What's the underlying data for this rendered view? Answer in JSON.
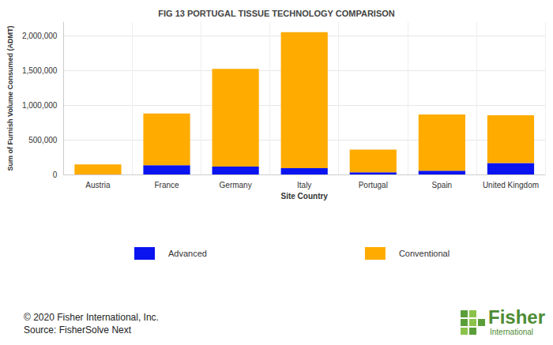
{
  "chart_data": {
    "type": "bar",
    "title": "FIG 13 PORTUGAL TISSUE TECHNOLOGY COMPARISON",
    "x_label": "Site Country",
    "y_label": "Sum of Furnish Volume Consumed (ADMT)",
    "categories": [
      "Austria",
      "France",
      "Germany",
      "Italy",
      "Portugal",
      "Spain",
      "United Kingdom"
    ],
    "series": [
      {
        "name": "Advanced",
        "color": "#0a14f0",
        "values": [
          0,
          135000,
          115000,
          90000,
          30000,
          55000,
          165000
        ]
      },
      {
        "name": "Conventional",
        "color": "#ffab00",
        "values": [
          145000,
          745000,
          1410000,
          1965000,
          330000,
          810000,
          690000
        ]
      }
    ],
    "stacked": true,
    "ylim": [
      0,
      2200000
    ],
    "yticks": [
      0,
      {
        "value": 500000,
        "label": "500,000"
      },
      {
        "value": 1000000,
        "label": "1,000,000"
      },
      {
        "value": 1500000,
        "label": "1,500,000"
      },
      {
        "value": 2000000,
        "label": "2,000,000"
      }
    ],
    "grid": true,
    "legend": "bottom",
    "annotations": [
      "© 2020 Fisher International, Inc.",
      "Source: FisherSolve Next",
      "Fisher",
      "International"
    ]
  }
}
